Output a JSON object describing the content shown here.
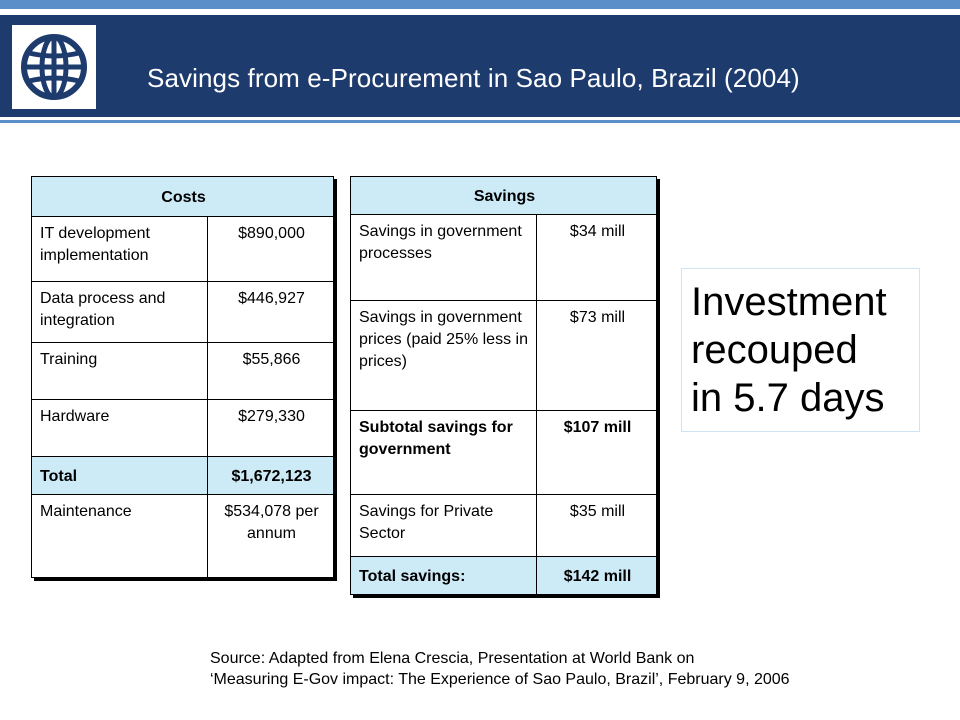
{
  "title": "Savings from e-Procurement in Sao Paulo, Brazil  (2004)",
  "colors": {
    "header_bg": "#1e3b6e",
    "accent": "#5b8fc9",
    "table_header_bg": "#cdeaf7"
  },
  "logo": {
    "icon": "globe-icon"
  },
  "costs_table": {
    "header": "Costs",
    "rows": [
      {
        "label": "IT development implementation",
        "value": "$890,000"
      },
      {
        "label": "Data process and integration",
        "value": "$446,927"
      },
      {
        "label": "Training",
        "value": "$55,866"
      },
      {
        "label": "Hardware",
        "value": "$279,330"
      },
      {
        "label": "Total",
        "value": "$1,672,123"
      },
      {
        "label": "Maintenance",
        "value": "$534,078 per annum"
      }
    ]
  },
  "savings_table": {
    "header": "Savings",
    "rows": [
      {
        "label": "Savings in government processes",
        "value": "$34 mill"
      },
      {
        "label": "Savings in government prices (paid 25% less in prices)",
        "value": "$73 mill"
      },
      {
        "label": "Subtotal savings for government",
        "value": "$107 mill"
      },
      {
        "label": "Savings for Private Sector",
        "value": "$35 mill"
      },
      {
        "label": "Total savings:",
        "value": "$142 mill"
      }
    ]
  },
  "callout": {
    "line1": "Investment",
    "line2": "recouped",
    "line3": "in 5.7 days"
  },
  "source": {
    "line1": "Source: Adapted from Elena Crescia, Presentation at World Bank on",
    "line2": "‘Measuring E-Gov impact: The Experience of Sao Paulo, Brazil’,  February 9, 2006"
  }
}
